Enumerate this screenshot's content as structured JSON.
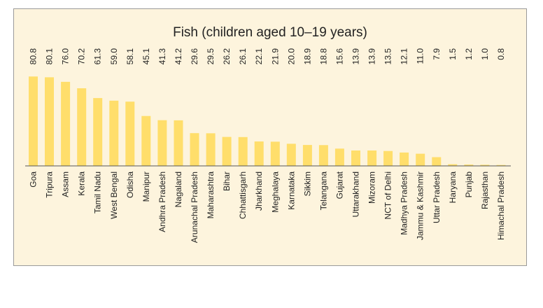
{
  "chart_data": {
    "type": "bar",
    "title": "Fish (children aged 10–19 years)",
    "xlabel": "",
    "ylabel": "",
    "ylim": [
      0,
      81
    ],
    "grid": false,
    "bar_color": "#ffde6b",
    "axis_color": "#555555",
    "background_color": "#fdf4dd",
    "categories": [
      "Goa",
      "Tripura",
      "Assam",
      "Kerala",
      "Tamil Nadu",
      "West Bengal",
      "Odisha",
      "Manipur",
      "Andhra Pradesh",
      "Nagaland",
      "Arunachal Pradesh",
      "Maharashtra",
      "Bihar",
      "Chhattisgarh",
      "Jharkhand",
      "Meghalaya",
      "Karnataka",
      "Sikkim",
      "Telangana",
      "Gujarat",
      "Uttarakhand",
      "Mizoram",
      "NCT of Delhi",
      "Madhya Pradesh",
      "Jammu & Kashmir",
      "Uttar Pradesh",
      "Haryana",
      "Punjab",
      "Rajasthan",
      "Himachal Pradesh"
    ],
    "values": [
      80.8,
      80.1,
      76.0,
      70.2,
      61.3,
      59.0,
      58.1,
      45.1,
      41.3,
      41.2,
      29.6,
      29.5,
      26.2,
      26.1,
      22.1,
      21.9,
      20.0,
      18.9,
      18.8,
      15.6,
      13.9,
      13.9,
      13.5,
      12.1,
      11.0,
      7.9,
      1.5,
      1.2,
      1.0,
      0.8
    ],
    "value_labels": [
      "80.8",
      "80.1",
      "76.0",
      "70.2",
      "61.3",
      "59.0",
      "58.1",
      "45.1",
      "41.3",
      "41.2",
      "29.6",
      "29.5",
      "26.2",
      "26.1",
      "22.1",
      "21.9",
      "20.0",
      "18.9",
      "18.8",
      "15.6",
      "13.9",
      "13.9",
      "13.5",
      "12.1",
      "11.0",
      "7.9",
      "1.5",
      "1.2",
      "1.0",
      "0.8"
    ]
  }
}
